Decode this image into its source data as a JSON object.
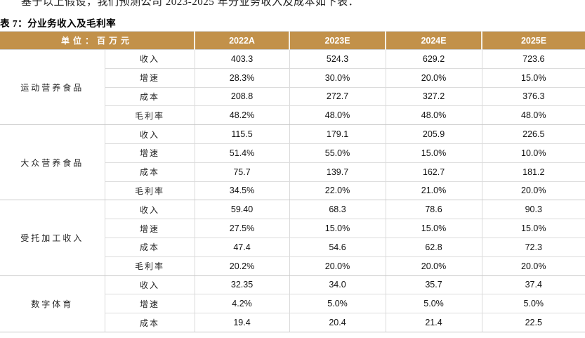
{
  "page": {
    "top_text_clipped": "基于以上假设，我们预测公司 2023-2025 年分业务收入及成本如下表：",
    "table_caption": "表 7：分业务收入及毛利率"
  },
  "table": {
    "header": {
      "unit_label": "单位：百万元",
      "years": [
        "2022A",
        "2023E",
        "2024E",
        "2025E"
      ]
    },
    "groups": [
      {
        "name": "运动营养食品",
        "rows": [
          {
            "label": "收入",
            "values": [
              "403.3",
              "524.3",
              "629.2",
              "723.6"
            ]
          },
          {
            "label": "增速",
            "values": [
              "28.3%",
              "30.0%",
              "20.0%",
              "15.0%"
            ]
          },
          {
            "label": "成本",
            "values": [
              "208.8",
              "272.7",
              "327.2",
              "376.3"
            ]
          },
          {
            "label": "毛利率",
            "values": [
              "48.2%",
              "48.0%",
              "48.0%",
              "48.0%"
            ]
          }
        ]
      },
      {
        "name": "大众营养食品",
        "rows": [
          {
            "label": "收入",
            "values": [
              "115.5",
              "179.1",
              "205.9",
              "226.5"
            ]
          },
          {
            "label": "增速",
            "values": [
              "51.4%",
              "55.0%",
              "15.0%",
              "10.0%"
            ]
          },
          {
            "label": "成本",
            "values": [
              "75.7",
              "139.7",
              "162.7",
              "181.2"
            ]
          },
          {
            "label": "毛利率",
            "values": [
              "34.5%",
              "22.0%",
              "21.0%",
              "20.0%"
            ]
          }
        ]
      },
      {
        "name": "受托加工收入",
        "rows": [
          {
            "label": "收入",
            "values": [
              "59.40",
              "68.3",
              "78.6",
              "90.3"
            ]
          },
          {
            "label": "增速",
            "values": [
              "27.5%",
              "15.0%",
              "15.0%",
              "15.0%"
            ]
          },
          {
            "label": "成本",
            "values": [
              "47.4",
              "54.6",
              "62.8",
              "72.3"
            ]
          },
          {
            "label": "毛利率",
            "values": [
              "20.2%",
              "20.0%",
              "20.0%",
              "20.0%"
            ]
          }
        ]
      },
      {
        "name": "数字体育",
        "rows": [
          {
            "label": "收入",
            "values": [
              "32.35",
              "34.0",
              "35.7",
              "37.4"
            ]
          },
          {
            "label": "增速",
            "values": [
              "4.2%",
              "5.0%",
              "5.0%",
              "5.0%"
            ]
          },
          {
            "label": "成本",
            "values": [
              "19.4",
              "20.4",
              "21.4",
              "22.5"
            ]
          }
        ]
      }
    ]
  },
  "colors": {
    "header_bg": "#C2914A",
    "header_text": "#FFFFFF",
    "border_inner": "#DCDCDC",
    "border_group": "#C9C9C9",
    "body_text": "#111111"
  }
}
